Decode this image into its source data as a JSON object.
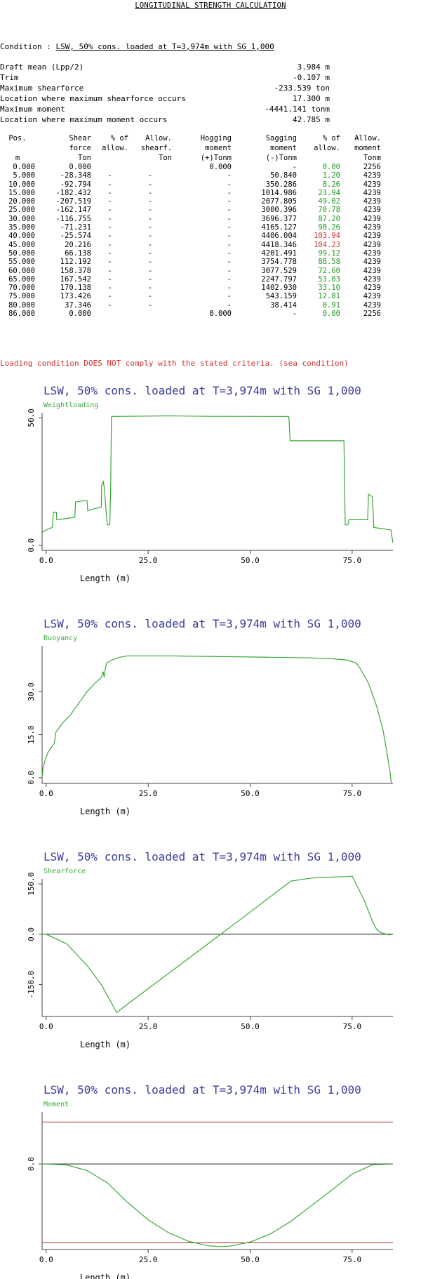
{
  "report": {
    "title": "LONGITUDINAL STRENGTH CALCULATION",
    "condition_label": "Condition : ",
    "condition_value": "LSW, 50% cons. loaded at T=3,974m with SG 1,000",
    "summary": [
      {
        "label": "Draft mean (Lpp/2)",
        "value": "3.984 m"
      },
      {
        "label": "Trim",
        "value": "-0.107 m"
      },
      {
        "label": "Maximum shearforce",
        "value": "-233.539 ton"
      },
      {
        "label": "Location where maximum shearforce occurs",
        "value": "17.300 m"
      },
      {
        "label": "Maximum moment",
        "value": "-4441.141 tonm"
      },
      {
        "label": "Location where maximum moment occurs",
        "value": "42.785 m"
      }
    ],
    "verdict": "Loading condition DOES NOT comply with the stated criteria. (sea condition)",
    "colors": {
      "ok": "#1a9a1a",
      "fail": "#d0312d",
      "title_blue": "#3b3b9e",
      "curve": "#3aa83a",
      "limit": "#b03030"
    }
  },
  "table": {
    "header_rows": [
      [
        "Pos.",
        "Shear",
        "% of",
        "Allow.",
        "Hogging",
        "Sagging",
        "% of",
        "Allow."
      ],
      [
        "",
        "force",
        "allow.",
        "shearf.",
        "moment",
        "moment",
        "allow.",
        "moment"
      ],
      [
        "m",
        "Ton",
        "",
        "Ton",
        "(+)Tonm",
        "(-)Tonm",
        "",
        "Tonm"
      ]
    ],
    "rows": [
      {
        "pos": "0.000",
        "shear": "0.000",
        "pct_shear": "",
        "allow_shear": "",
        "hog": "0.000",
        "sag": "-",
        "pct_mom": "0.00",
        "allow_mom": "2256",
        "status": "ok"
      },
      {
        "pos": "5.000",
        "shear": "-28.348",
        "pct_shear": "-",
        "allow_shear": "-",
        "hog": "-",
        "sag": "50.840",
        "pct_mom": "1.20",
        "allow_mom": "4239",
        "status": "ok"
      },
      {
        "pos": "10.000",
        "shear": "-92.794",
        "pct_shear": "-",
        "allow_shear": "-",
        "hog": "-",
        "sag": "350.286",
        "pct_mom": "8.26",
        "allow_mom": "4239",
        "status": "ok"
      },
      {
        "pos": "15.000",
        "shear": "-182.432",
        "pct_shear": "-",
        "allow_shear": "-",
        "hog": "-",
        "sag": "1014.986",
        "pct_mom": "23.94",
        "allow_mom": "4239",
        "status": "ok"
      },
      {
        "pos": "20.000",
        "shear": "-207.519",
        "pct_shear": "-",
        "allow_shear": "-",
        "hog": "-",
        "sag": "2077.805",
        "pct_mom": "49.02",
        "allow_mom": "4239",
        "status": "ok"
      },
      {
        "pos": "25.000",
        "shear": "-162.147",
        "pct_shear": "-",
        "allow_shear": "-",
        "hog": "-",
        "sag": "3000.396",
        "pct_mom": "70.78",
        "allow_mom": "4239",
        "status": "ok"
      },
      {
        "pos": "30.000",
        "shear": "-116.755",
        "pct_shear": "-",
        "allow_shear": "-",
        "hog": "-",
        "sag": "3696.377",
        "pct_mom": "87.20",
        "allow_mom": "4239",
        "status": "ok"
      },
      {
        "pos": "35.000",
        "shear": "-71.231",
        "pct_shear": "-",
        "allow_shear": "-",
        "hog": "-",
        "sag": "4165.127",
        "pct_mom": "98.26",
        "allow_mom": "4239",
        "status": "ok"
      },
      {
        "pos": "40.000",
        "shear": "-25.574",
        "pct_shear": "-",
        "allow_shear": "-",
        "hog": "-",
        "sag": "4406.004",
        "pct_mom": "103.94",
        "allow_mom": "4239",
        "status": "fail"
      },
      {
        "pos": "45.000",
        "shear": "20.216",
        "pct_shear": "-",
        "allow_shear": "-",
        "hog": "-",
        "sag": "4418.346",
        "pct_mom": "104.23",
        "allow_mom": "4239",
        "status": "fail"
      },
      {
        "pos": "50.000",
        "shear": "66.138",
        "pct_shear": "-",
        "allow_shear": "-",
        "hog": "-",
        "sag": "4201.491",
        "pct_mom": "99.12",
        "allow_mom": "4239",
        "status": "ok"
      },
      {
        "pos": "55.000",
        "shear": "112.192",
        "pct_shear": "-",
        "allow_shear": "-",
        "hog": "-",
        "sag": "3754.778",
        "pct_mom": "88.58",
        "allow_mom": "4239",
        "status": "ok"
      },
      {
        "pos": "60.000",
        "shear": "158.378",
        "pct_shear": "-",
        "allow_shear": "-",
        "hog": "-",
        "sag": "3077.529",
        "pct_mom": "72.60",
        "allow_mom": "4239",
        "status": "ok"
      },
      {
        "pos": "65.000",
        "shear": "167.542",
        "pct_shear": "-",
        "allow_shear": "-",
        "hog": "-",
        "sag": "2247.797",
        "pct_mom": "53.03",
        "allow_mom": "4239",
        "status": "ok"
      },
      {
        "pos": "70.000",
        "shear": "170.138",
        "pct_shear": "-",
        "allow_shear": "-",
        "hog": "-",
        "sag": "1402.930",
        "pct_mom": "33.10",
        "allow_mom": "4239",
        "status": "ok"
      },
      {
        "pos": "75.000",
        "shear": "173.426",
        "pct_shear": "-",
        "allow_shear": "-",
        "hog": "-",
        "sag": "543.159",
        "pct_mom": "12.81",
        "allow_mom": "4239",
        "status": "ok"
      },
      {
        "pos": "80.000",
        "shear": "37.346",
        "pct_shear": "-",
        "allow_shear": "-",
        "hog": "-",
        "sag": "38.414",
        "pct_mom": "0.91",
        "allow_mom": "4239",
        "status": "ok"
      },
      {
        "pos": "86.000",
        "shear": "0.000",
        "pct_shear": "",
        "allow_shear": "",
        "hog": "0.000",
        "sag": "-",
        "pct_mom": "0.00",
        "allow_mom": "2256",
        "status": "ok"
      }
    ]
  },
  "chart_data": [
    {
      "type": "line",
      "title": "LSW, 50% cons. loaded at T=3,974m with SG 1,000",
      "series_label": "Weightloading",
      "xlabel": "Length (m)",
      "xlim": [
        -1,
        85
      ],
      "ylim": [
        -2,
        52
      ],
      "xticks": [
        0,
        25,
        50,
        75
      ],
      "xtick_labels": [
        "0.0",
        "25.0",
        "50.0",
        "75.0"
      ],
      "yticks": [
        0,
        50
      ],
      "ytick_labels": [
        "0.0",
        "50.0"
      ],
      "zero_line": false,
      "limits": [],
      "points": [
        [
          -1,
          5
        ],
        [
          0,
          6
        ],
        [
          1.5,
          7
        ],
        [
          1.8,
          13
        ],
        [
          2.5,
          13
        ],
        [
          2.6,
          10
        ],
        [
          5,
          10.5
        ],
        [
          7,
          11
        ],
        [
          7.2,
          17
        ],
        [
          9.5,
          17.5
        ],
        [
          10,
          17.5
        ],
        [
          10.2,
          13.5
        ],
        [
          11,
          14
        ],
        [
          13.5,
          15
        ],
        [
          13.6,
          23.5
        ],
        [
          14,
          25
        ],
        [
          14.3,
          22
        ],
        [
          14.6,
          15
        ],
        [
          15,
          8
        ],
        [
          15.6,
          8
        ],
        [
          15.8,
          22
        ],
        [
          16,
          50.5
        ],
        [
          30,
          50.8
        ],
        [
          40,
          50.6
        ],
        [
          59.5,
          50.5
        ],
        [
          59.8,
          41
        ],
        [
          73,
          41
        ],
        [
          73.3,
          8
        ],
        [
          74,
          8
        ],
        [
          74.2,
          10
        ],
        [
          78.8,
          10
        ],
        [
          79,
          20
        ],
        [
          80,
          19
        ],
        [
          80.3,
          7
        ],
        [
          84.5,
          6
        ],
        [
          85,
          1
        ]
      ]
    },
    {
      "type": "line",
      "title": "LSW, 50% cons. loaded at T=3,974m with SG 1,000",
      "series_label": "Buoyancy",
      "xlabel": "Length (m)",
      "xlim": [
        -1,
        85
      ],
      "ylim": [
        -2,
        46
      ],
      "xticks": [
        0,
        25,
        50,
        75
      ],
      "xtick_labels": [
        "0.0",
        "25.0",
        "50.0",
        "75.0"
      ],
      "yticks": [
        0,
        15,
        30
      ],
      "ytick_labels": [
        "0.0",
        "15.0",
        "30.0"
      ],
      "zero_line": false,
      "limits": [],
      "points": [
        [
          -1,
          0
        ],
        [
          -0.8,
          3
        ],
        [
          -0.3,
          6
        ],
        [
          0.5,
          9
        ],
        [
          2,
          12
        ],
        [
          2.4,
          16
        ],
        [
          4,
          19
        ],
        [
          6,
          22
        ],
        [
          8,
          26
        ],
        [
          10,
          30
        ],
        [
          12,
          33
        ],
        [
          13.5,
          35
        ],
        [
          14,
          37
        ],
        [
          14.2,
          35
        ],
        [
          14.5,
          38
        ],
        [
          14.8,
          40
        ],
        [
          16,
          41
        ],
        [
          18,
          42
        ],
        [
          20,
          42.5
        ],
        [
          30,
          42.5
        ],
        [
          40,
          42.3
        ],
        [
          55,
          42
        ],
        [
          65,
          41.8
        ],
        [
          70,
          41.5
        ],
        [
          74,
          41
        ],
        [
          76,
          40
        ],
        [
          77,
          38
        ],
        [
          79,
          33
        ],
        [
          81,
          25
        ],
        [
          82.5,
          17
        ],
        [
          83.5,
          9
        ],
        [
          84.3,
          2
        ],
        [
          84.6,
          -2
        ]
      ]
    },
    {
      "type": "line",
      "title": "LSW, 50% cons. loaded at T=3,974m with SG 1,000",
      "series_label": "Shearforce",
      "xlabel": "Length (m)",
      "xlim": [
        -1,
        85
      ],
      "ylim": [
        -245,
        165
      ],
      "xticks": [
        0,
        25,
        50,
        75
      ],
      "xtick_labels": [
        "0.0",
        "25.0",
        "50.0",
        "75.0"
      ],
      "yticks": [
        -150,
        0,
        150
      ],
      "ytick_labels": [
        "-150.0",
        "0.0",
        "150.0"
      ],
      "zero_line": true,
      "limits": [],
      "points": [
        [
          -1,
          0
        ],
        [
          0,
          0
        ],
        [
          5,
          -28.348
        ],
        [
          10,
          -92.794
        ],
        [
          13.5,
          -150
        ],
        [
          15,
          -182.432
        ],
        [
          17.3,
          -233.539
        ],
        [
          20,
          -207.519
        ],
        [
          25,
          -162.147
        ],
        [
          30,
          -116.755
        ],
        [
          35,
          -71.231
        ],
        [
          40,
          -25.574
        ],
        [
          45,
          20.216
        ],
        [
          50,
          66.138
        ],
        [
          55,
          112.192
        ],
        [
          60,
          158.378
        ],
        [
          65,
          167.542
        ],
        [
          70,
          170.138
        ],
        [
          74,
          172
        ],
        [
          75,
          173.426
        ],
        [
          78,
          100
        ],
        [
          80,
          37.346
        ],
        [
          81,
          15
        ],
        [
          82,
          5
        ],
        [
          84,
          -2
        ],
        [
          85,
          0
        ]
      ]
    },
    {
      "type": "line",
      "title": "LSW, 50% cons. loaded at T=3,974m with SG 1,000",
      "series_label": "Moment",
      "xlabel": "Length (m)",
      "xlim": [
        -1,
        85
      ],
      "ylim": [
        -4600,
        2800
      ],
      "xticks": [
        0,
        25,
        50,
        75
      ],
      "xtick_labels": [
        "0.0",
        "25.0",
        "50.0",
        "75.0"
      ],
      "yticks": [
        0
      ],
      "ytick_labels": [
        "0.0"
      ],
      "zero_line": true,
      "limits": [
        2256,
        -4239
      ],
      "points": [
        [
          -1,
          0
        ],
        [
          0,
          0
        ],
        [
          5,
          -50.84
        ],
        [
          10,
          -350.286
        ],
        [
          15,
          -1014.986
        ],
        [
          20,
          -2077.805
        ],
        [
          25,
          -3000.396
        ],
        [
          30,
          -3696.377
        ],
        [
          35,
          -4165.127
        ],
        [
          40,
          -4406.004
        ],
        [
          42.785,
          -4441.141
        ],
        [
          45,
          -4418.346
        ],
        [
          50,
          -4201.491
        ],
        [
          55,
          -3754.778
        ],
        [
          60,
          -3077.529
        ],
        [
          65,
          -2247.797
        ],
        [
          70,
          -1402.93
        ],
        [
          75,
          -543.159
        ],
        [
          80,
          -38.414
        ],
        [
          85,
          0
        ]
      ]
    }
  ]
}
